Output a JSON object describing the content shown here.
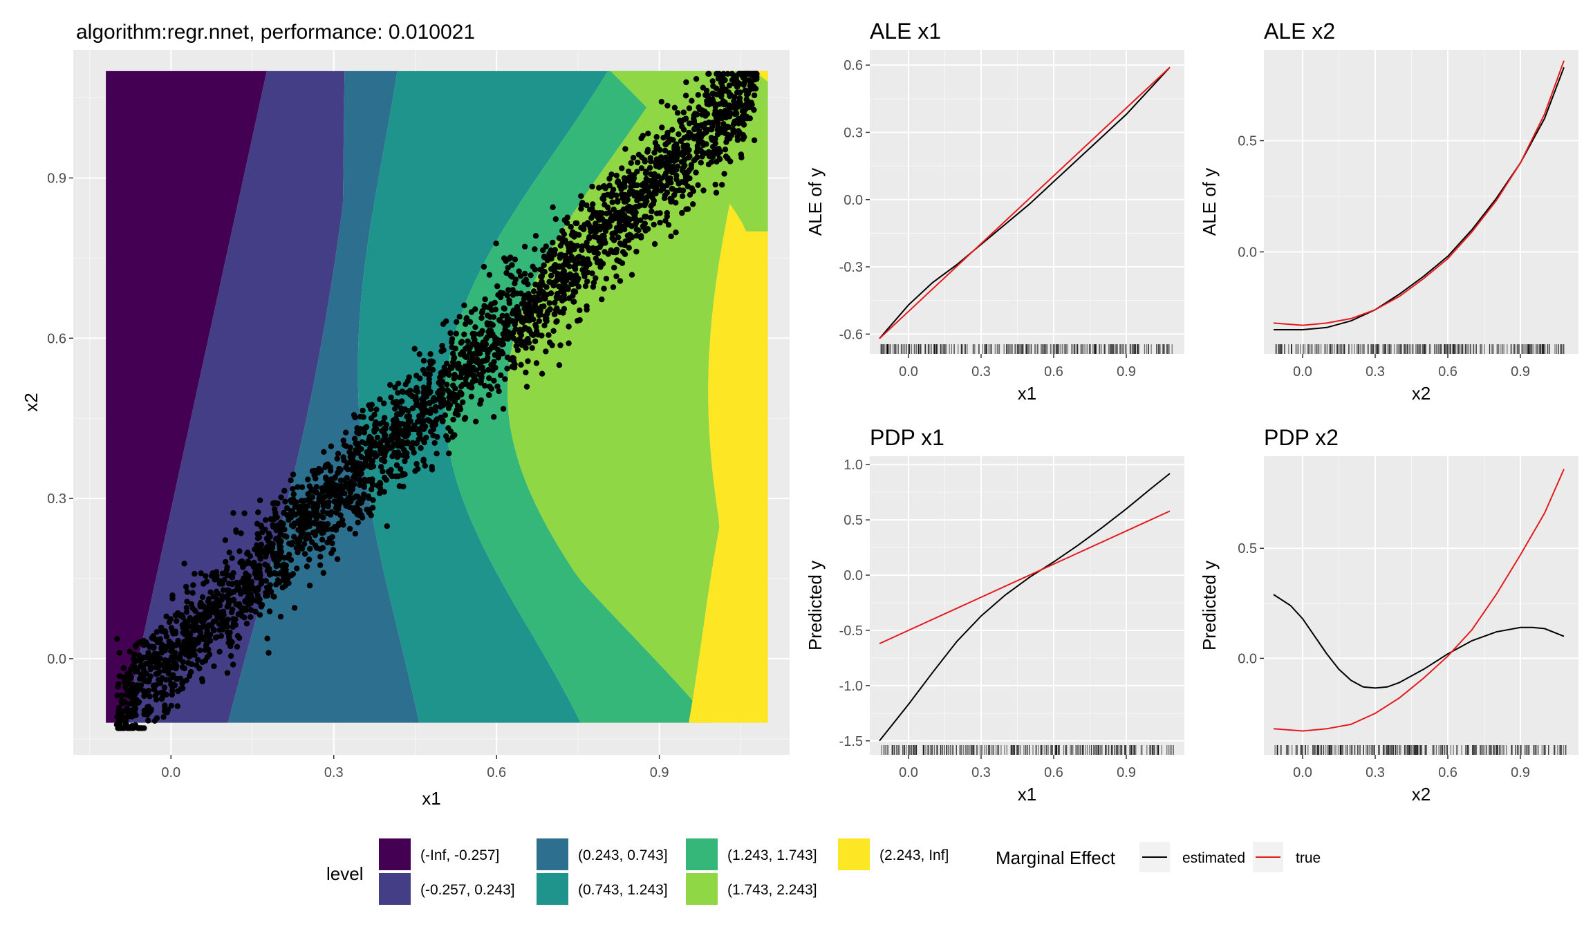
{
  "colors": {
    "panel_bg": "#EBEBEB",
    "grid": "#FFFFFF",
    "points": "#000000",
    "estimated": "#000000",
    "true": "#E41A1C",
    "levels": [
      "#440154",
      "#433E85",
      "#2D6F8E",
      "#1F948C",
      "#35B779",
      "#8FD744",
      "#FDE725"
    ]
  },
  "legend": {
    "level_title": "level",
    "level_items": [
      "(-Inf, -0.257]",
      "(-0.257, 0.243]",
      "(0.243, 0.743]",
      "(0.743, 1.243]",
      "(1.243, 1.743]",
      "(1.743, 2.243]",
      "(2.243, Inf]"
    ],
    "marginal_title": "Marginal Effect",
    "marginal_items": [
      "estimated",
      "true"
    ]
  },
  "chart_data": [
    {
      "type": "heatmap",
      "title": "algorithm:regr.nnet, performance: 0.010021",
      "xlabel": "x1",
      "ylabel": "x2",
      "xlim": [
        -0.12,
        1.1
      ],
      "ylim": [
        -0.12,
        1.1
      ],
      "xticks": [
        "0.0",
        "0.3",
        "0.6",
        "0.9"
      ],
      "yticks": [
        "0.0",
        "0.3",
        "0.6",
        "0.9"
      ],
      "fill_levels": [
        "(-Inf, -0.257]",
        "(-0.257, 0.243]",
        "(0.243, 0.743]",
        "(0.743, 1.243]",
        "(1.243, 1.743]",
        "(1.743, 2.243]",
        "(2.243, Inf]"
      ],
      "scatter": {
        "n_points": 5000,
        "x_range": [
          -0.12,
          1.1
        ],
        "relation": "x2 ≈ x1",
        "spread_sd": 0.05
      }
    },
    {
      "type": "line",
      "title": "ALE x1",
      "xlabel": "x1",
      "ylabel": "ALE of y",
      "xlim": [
        -0.12,
        1.1
      ],
      "ylim": [
        -0.65,
        0.63
      ],
      "xticks": [
        "0.0",
        "0.3",
        "0.6",
        "0.9"
      ],
      "yticks": [
        "-0.6",
        "-0.3",
        "0.0",
        "0.3",
        "0.6"
      ],
      "series": [
        {
          "name": "estimated",
          "x": [
            -0.12,
            0.0,
            0.1,
            0.2,
            0.3,
            0.5,
            0.7,
            0.9,
            1.08
          ],
          "y": [
            -0.62,
            -0.47,
            -0.37,
            -0.29,
            -0.2,
            -0.02,
            0.18,
            0.38,
            0.59
          ]
        },
        {
          "name": "true",
          "x": [
            -0.12,
            1.08
          ],
          "y": [
            -0.62,
            0.59
          ]
        }
      ],
      "rug": true
    },
    {
      "type": "line",
      "title": "ALE x2",
      "xlabel": "x2",
      "ylabel": "ALE of y",
      "xlim": [
        -0.12,
        1.1
      ],
      "ylim": [
        -0.42,
        0.87
      ],
      "xticks": [
        "0.0",
        "0.3",
        "0.6",
        "0.9"
      ],
      "yticks": [
        "0.0",
        "0.5"
      ],
      "series": [
        {
          "name": "estimated",
          "x": [
            -0.12,
            0.0,
            0.1,
            0.2,
            0.3,
            0.4,
            0.5,
            0.6,
            0.7,
            0.8,
            0.9,
            1.0,
            1.08
          ],
          "y": [
            -0.35,
            -0.35,
            -0.34,
            -0.31,
            -0.26,
            -0.19,
            -0.11,
            -0.02,
            0.1,
            0.24,
            0.4,
            0.6,
            0.83
          ]
        },
        {
          "name": "true",
          "x": [
            -0.12,
            0.0,
            0.1,
            0.2,
            0.3,
            0.4,
            0.5,
            0.6,
            0.7,
            0.8,
            0.9,
            1.0,
            1.08
          ],
          "y": [
            -0.32,
            -0.33,
            -0.32,
            -0.3,
            -0.26,
            -0.2,
            -0.12,
            -0.03,
            0.09,
            0.23,
            0.4,
            0.62,
            0.86
          ]
        }
      ],
      "rug": true
    },
    {
      "type": "line",
      "title": "PDP x1",
      "xlabel": "x1",
      "ylabel": "Predicted y",
      "xlim": [
        -0.12,
        1.1
      ],
      "ylim": [
        -1.55,
        1.0
      ],
      "xticks": [
        "0.0",
        "0.3",
        "0.6",
        "0.9"
      ],
      "yticks": [
        "-1.5",
        "-1.0",
        "-0.5",
        "0.0",
        "0.5",
        "1.0"
      ],
      "series": [
        {
          "name": "estimated",
          "x": [
            -0.12,
            0.0,
            0.1,
            0.2,
            0.3,
            0.4,
            0.5,
            0.6,
            0.7,
            0.8,
            0.9,
            1.0,
            1.08
          ],
          "y": [
            -1.5,
            -1.17,
            -0.88,
            -0.6,
            -0.37,
            -0.18,
            -0.02,
            0.12,
            0.27,
            0.43,
            0.6,
            0.78,
            0.92
          ]
        },
        {
          "name": "true",
          "x": [
            -0.12,
            1.08
          ],
          "y": [
            -0.62,
            0.58
          ]
        }
      ],
      "rug": true
    },
    {
      "type": "line",
      "title": "PDP x2",
      "xlabel": "x2",
      "ylabel": "Predicted y",
      "xlim": [
        -0.12,
        1.1
      ],
      "ylim": [
        -0.4,
        0.88
      ],
      "xticks": [
        "0.0",
        "0.3",
        "0.6",
        "0.9"
      ],
      "yticks": [
        "0.0",
        "0.5"
      ],
      "series": [
        {
          "name": "estimated",
          "x": [
            -0.12,
            -0.05,
            0.0,
            0.05,
            0.1,
            0.15,
            0.2,
            0.25,
            0.3,
            0.35,
            0.4,
            0.5,
            0.6,
            0.7,
            0.8,
            0.9,
            0.95,
            1.0,
            1.08
          ],
          "y": [
            0.29,
            0.24,
            0.18,
            0.1,
            0.02,
            -0.05,
            -0.1,
            -0.13,
            -0.135,
            -0.13,
            -0.11,
            -0.05,
            0.02,
            0.08,
            0.12,
            0.14,
            0.14,
            0.135,
            0.1
          ]
        },
        {
          "name": "true",
          "x": [
            -0.12,
            0.0,
            0.1,
            0.2,
            0.3,
            0.4,
            0.5,
            0.6,
            0.7,
            0.8,
            0.9,
            1.0,
            1.08
          ],
          "y": [
            -0.32,
            -0.33,
            -0.32,
            -0.3,
            -0.25,
            -0.18,
            -0.09,
            0.01,
            0.13,
            0.29,
            0.47,
            0.66,
            0.86
          ]
        }
      ],
      "rug": true
    }
  ]
}
